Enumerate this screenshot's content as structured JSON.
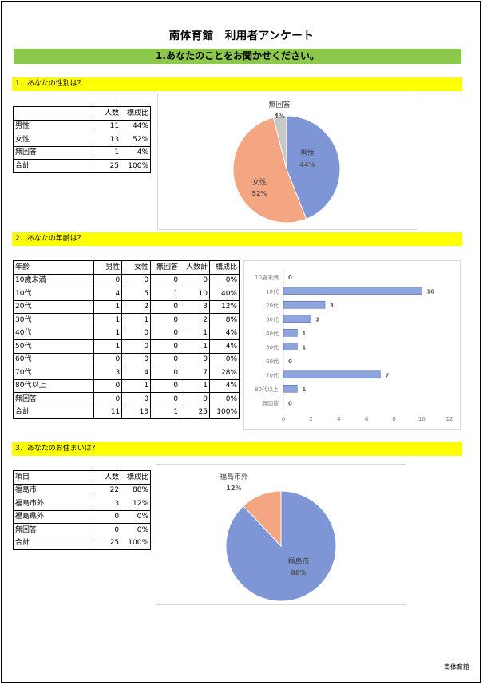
{
  "title": "南体育館　利用者アンケート",
  "banner": "1.あなたのことをお聞かせください。",
  "footer": "南体育館",
  "q1": {
    "label": "1．あなたの性別は？",
    "headers": [
      "",
      "人数",
      "構成比"
    ],
    "rows": [
      [
        "男性",
        "11",
        "44%"
      ],
      [
        "女性",
        "13",
        "52%"
      ],
      [
        "無回答",
        "1",
        "4%"
      ],
      [
        "合計",
        "25",
        "100%"
      ]
    ]
  },
  "q2": {
    "label": "2．あなたの年齢は？",
    "headers": [
      "年齢",
      "男性",
      "女性",
      "無回答",
      "人数計",
      "構成比"
    ],
    "rows": [
      [
        "10歳未満",
        "0",
        "0",
        "0",
        "0",
        "0%"
      ],
      [
        "10代",
        "4",
        "5",
        "1",
        "10",
        "40%"
      ],
      [
        "20代",
        "1",
        "2",
        "0",
        "3",
        "12%"
      ],
      [
        "30代",
        "1",
        "1",
        "0",
        "2",
        "8%"
      ],
      [
        "40代",
        "1",
        "0",
        "0",
        "1",
        "4%"
      ],
      [
        "50代",
        "1",
        "0",
        "0",
        "1",
        "4%"
      ],
      [
        "60代",
        "0",
        "0",
        "0",
        "0",
        "0%"
      ],
      [
        "70代",
        "3",
        "4",
        "0",
        "7",
        "28%"
      ],
      [
        "80代以上",
        "0",
        "1",
        "0",
        "1",
        "4%"
      ],
      [
        "無回答",
        "0",
        "0",
        "0",
        "0",
        "0%"
      ],
      [
        "合計",
        "11",
        "13",
        "1",
        "25",
        "100%"
      ]
    ]
  },
  "q3": {
    "label": "3．あなたのお住まいは？",
    "headers": [
      "項目",
      "人数",
      "構成比"
    ],
    "rows": [
      [
        "福島市",
        "22",
        "88%"
      ],
      [
        "福島市外",
        "3",
        "12%"
      ],
      [
        "福島県外",
        "0",
        "0%"
      ],
      [
        "無回答",
        "0",
        "0%"
      ],
      [
        "合計",
        "25",
        "100%"
      ]
    ]
  },
  "chart_data": [
    {
      "type": "pie",
      "categories": [
        "男性",
        "女性",
        "無回答"
      ],
      "values": [
        44,
        52,
        4
      ],
      "labels": [
        "44%",
        "52%",
        "4%"
      ],
      "colors": [
        "#7f96d6",
        "#f4a582",
        "#c8c8c8"
      ]
    },
    {
      "type": "bar",
      "orientation": "horizontal",
      "categories": [
        "10歳未満",
        "10代",
        "20代",
        "30代",
        "40代",
        "50代",
        "60代",
        "70代",
        "80代以上",
        "無回答"
      ],
      "values": [
        0,
        10,
        3,
        2,
        1,
        1,
        0,
        7,
        1,
        0
      ],
      "xlim": [
        0,
        12
      ],
      "xticks": [
        0,
        2,
        4,
        6,
        8,
        10,
        12
      ],
      "color": "#8ea4dc"
    },
    {
      "type": "pie",
      "categories": [
        "福島市",
        "福島市外"
      ],
      "values": [
        88,
        12
      ],
      "labels": [
        "88%",
        "12%"
      ],
      "colors": [
        "#7f96d6",
        "#f4a582"
      ]
    }
  ]
}
